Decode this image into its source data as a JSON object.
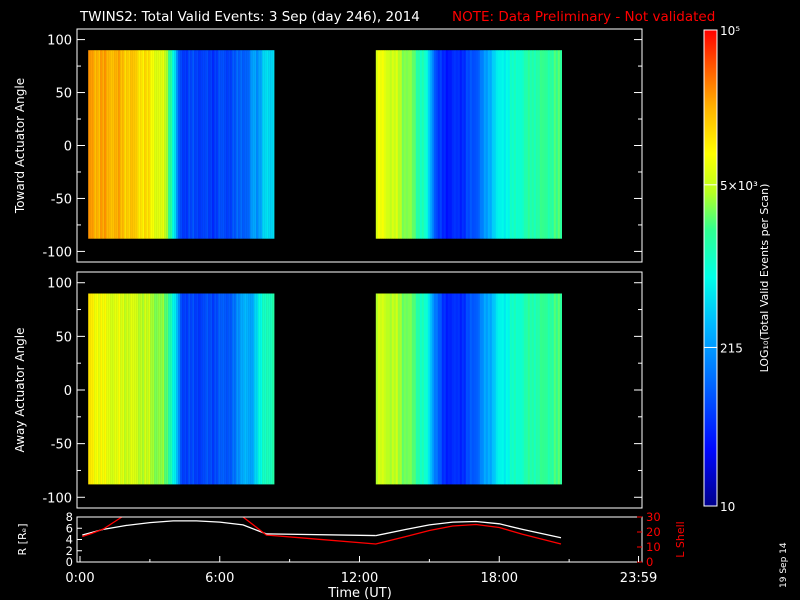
{
  "title": "TWINS2: Total Valid Events:  3 Sep (day 246), 2014",
  "note": "NOTE: Data Preliminary - Not validated",
  "stamp": "19 Sep 14",
  "colors": {
    "background": "#000000",
    "foreground": "#ffffff",
    "note": "#ff0000",
    "lshell": "#ff0000",
    "radius": "#ffffff"
  },
  "chart_data": [
    {
      "type": "heatmap",
      "name": "toward",
      "ylabel": "Toward Actuator Angle",
      "ylim": [
        -110,
        110
      ],
      "yticks": [
        100,
        50,
        0,
        -50,
        -100
      ],
      "xlim": [
        0,
        24
      ],
      "angle_range": [
        -88,
        90
      ],
      "segments": [
        {
          "start": 0.35,
          "end": 8.25,
          "profile": [
            [
              0.35,
              0.85
            ],
            [
              1.0,
              0.84
            ],
            [
              1.6,
              0.83
            ],
            [
              2.2,
              0.8
            ],
            [
              2.8,
              0.77
            ],
            [
              3.2,
              0.72
            ],
            [
              3.6,
              0.68
            ],
            [
              3.9,
              0.55
            ],
            [
              4.05,
              0.4
            ],
            [
              4.2,
              0.22
            ],
            [
              4.5,
              0.2
            ],
            [
              5.0,
              0.21
            ],
            [
              5.5,
              0.19
            ],
            [
              6.0,
              0.21
            ],
            [
              6.6,
              0.22
            ],
            [
              6.9,
              0.27
            ],
            [
              7.2,
              0.24
            ],
            [
              7.4,
              0.36
            ],
            [
              7.6,
              0.33
            ],
            [
              7.9,
              0.42
            ],
            [
              8.25,
              0.44
            ]
          ]
        },
        {
          "start": 12.7,
          "end": 20.65,
          "profile": [
            [
              12.7,
              0.72
            ],
            [
              13.2,
              0.7
            ],
            [
              13.8,
              0.65
            ],
            [
              14.3,
              0.6
            ],
            [
              14.8,
              0.5
            ],
            [
              15.1,
              0.32
            ],
            [
              15.3,
              0.18
            ],
            [
              15.8,
              0.15
            ],
            [
              16.4,
              0.18
            ],
            [
              16.9,
              0.23
            ],
            [
              17.3,
              0.3
            ],
            [
              17.7,
              0.42
            ],
            [
              18.2,
              0.48
            ],
            [
              18.8,
              0.52
            ],
            [
              19.5,
              0.56
            ],
            [
              20.0,
              0.57
            ],
            [
              20.65,
              0.58
            ]
          ]
        }
      ]
    },
    {
      "type": "heatmap",
      "name": "away",
      "ylabel": "Away Actuator Angle",
      "ylim": [
        -110,
        110
      ],
      "yticks": [
        100,
        50,
        0,
        -50,
        -100
      ],
      "xlim": [
        0,
        24
      ],
      "angle_range": [
        -88,
        90
      ],
      "segments": [
        {
          "start": 0.35,
          "end": 8.25,
          "profile": [
            [
              0.35,
              0.76
            ],
            [
              1.0,
              0.72
            ],
            [
              1.6,
              0.7
            ],
            [
              2.2,
              0.69
            ],
            [
              2.8,
              0.67
            ],
            [
              3.4,
              0.63
            ],
            [
              3.8,
              0.58
            ],
            [
              4.1,
              0.4
            ],
            [
              4.3,
              0.22
            ],
            [
              4.8,
              0.2
            ],
            [
              5.4,
              0.21
            ],
            [
              6.0,
              0.23
            ],
            [
              6.6,
              0.26
            ],
            [
              7.0,
              0.4
            ],
            [
              7.3,
              0.32
            ],
            [
              7.6,
              0.48
            ],
            [
              8.0,
              0.52
            ],
            [
              8.25,
              0.56
            ]
          ]
        },
        {
          "start": 12.7,
          "end": 20.65,
          "profile": [
            [
              12.7,
              0.68
            ],
            [
              13.3,
              0.67
            ],
            [
              13.9,
              0.63
            ],
            [
              14.4,
              0.58
            ],
            [
              14.9,
              0.47
            ],
            [
              15.2,
              0.3
            ],
            [
              15.5,
              0.18
            ],
            [
              16.0,
              0.16
            ],
            [
              16.5,
              0.19
            ],
            [
              17.0,
              0.26
            ],
            [
              17.5,
              0.36
            ],
            [
              18.0,
              0.46
            ],
            [
              18.6,
              0.51
            ],
            [
              19.3,
              0.55
            ],
            [
              20.0,
              0.57
            ],
            [
              20.65,
              0.58
            ]
          ]
        }
      ]
    },
    {
      "type": "line",
      "name": "orbit",
      "xlabel": "Time (UT)",
      "xticks": [
        {
          "x": 0,
          "label": "0:00"
        },
        {
          "x": 6,
          "label": "6:00"
        },
        {
          "x": 12,
          "label": "12:00"
        },
        {
          "x": 18,
          "label": "18:00"
        },
        {
          "x": 23.98,
          "label": "23:59"
        }
      ],
      "xlim": [
        0,
        24
      ],
      "left_axis": {
        "label": "R [Rₑ]",
        "ylim": [
          0,
          8
        ],
        "ticks": [
          "0",
          "2",
          "4",
          "6",
          "8"
        ]
      },
      "right_axis": {
        "label": "L Shell",
        "ylim": [
          0,
          30
        ],
        "ticks": [
          "0",
          "10",
          "20",
          "30"
        ]
      },
      "series": [
        {
          "axis": "left",
          "color": "#ffffff",
          "x": [
            0.1,
            1.0,
            2.0,
            3.0,
            4.0,
            5.0,
            6.0,
            7.0,
            8.0,
            12.7,
            14.0,
            15.0,
            16.0,
            17.0,
            18.0,
            19.0,
            20.65
          ],
          "y": [
            4.8,
            5.8,
            6.5,
            7.0,
            7.3,
            7.3,
            7.1,
            6.6,
            5.0,
            4.7,
            5.8,
            6.6,
            7.1,
            7.2,
            6.8,
            5.8,
            4.3
          ]
        },
        {
          "axis": "right",
          "color": "#ff0000",
          "x": [
            0.1,
            0.5,
            1.0,
            1.4,
            1.8,
            7.0,
            7.5,
            8.0,
            10.0,
            12.7,
            14.0,
            15.0,
            16.0,
            17.0,
            18.0,
            19.0,
            20.65
          ],
          "y": [
            17.0,
            19.0,
            22.0,
            26.0,
            30.0,
            30.0,
            24.0,
            18.0,
            15.5,
            12.0,
            17.0,
            21.0,
            24.0,
            25.0,
            23.0,
            18.5,
            12.0
          ]
        }
      ]
    },
    {
      "type": "heatmap",
      "name": "colorbar",
      "label": "LOG₁₀(Total Valid Events per Scan)",
      "range": [
        10,
        100000
      ],
      "ticks": [
        {
          "value": 100000,
          "label": "10⁵"
        },
        {
          "value": 5000,
          "label": "5×10³"
        },
        {
          "value": 215,
          "label": "215"
        },
        {
          "value": 10,
          "label": "10"
        }
      ]
    }
  ]
}
